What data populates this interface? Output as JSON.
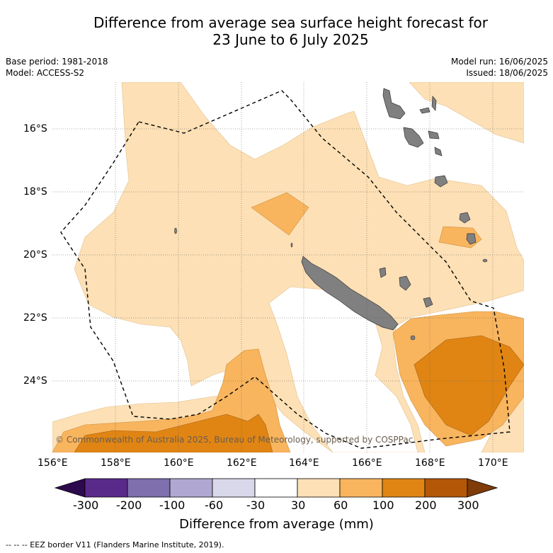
{
  "title": {
    "line1": "Difference from average sea surface height forecast for",
    "line2": "23 June to 6 July 2025"
  },
  "meta": {
    "base_period": "Base period: 1981-2018",
    "model": "Model: ACCESS-S2",
    "model_run": "Model run: 16/06/2025",
    "issued": "Issued: 18/06/2025"
  },
  "map": {
    "lat_labels": [
      "16°S",
      "18°S",
      "20°S",
      "22°S",
      "24°S"
    ],
    "lon_labels": [
      "156°E",
      "158°E",
      "160°E",
      "162°E",
      "164°E",
      "166°E",
      "168°E",
      "170°E"
    ],
    "credit": "© Commonwealth of Australia 2025, Bureau of Meteorology, supported by COSPPac",
    "land_color": "#808080",
    "eez_style": "dashed black line"
  },
  "colorbar": {
    "ticks": [
      "-300",
      "-200",
      "-100",
      "-60",
      "-30",
      "30",
      "60",
      "100",
      "200",
      "300"
    ],
    "colors": [
      "#2d0a4e",
      "#5a2a8a",
      "#7f6fad",
      "#b0a8d2",
      "#d8d8ea",
      "#ffffff",
      "#fde0b5",
      "#f8b55e",
      "#e08514",
      "#b35806",
      "#7f3b08"
    ],
    "label": "Difference from average (mm)"
  },
  "footer": {
    "legend": "-- -- -- EEZ border V11 (Flanders Marine Institute, 2019)."
  }
}
